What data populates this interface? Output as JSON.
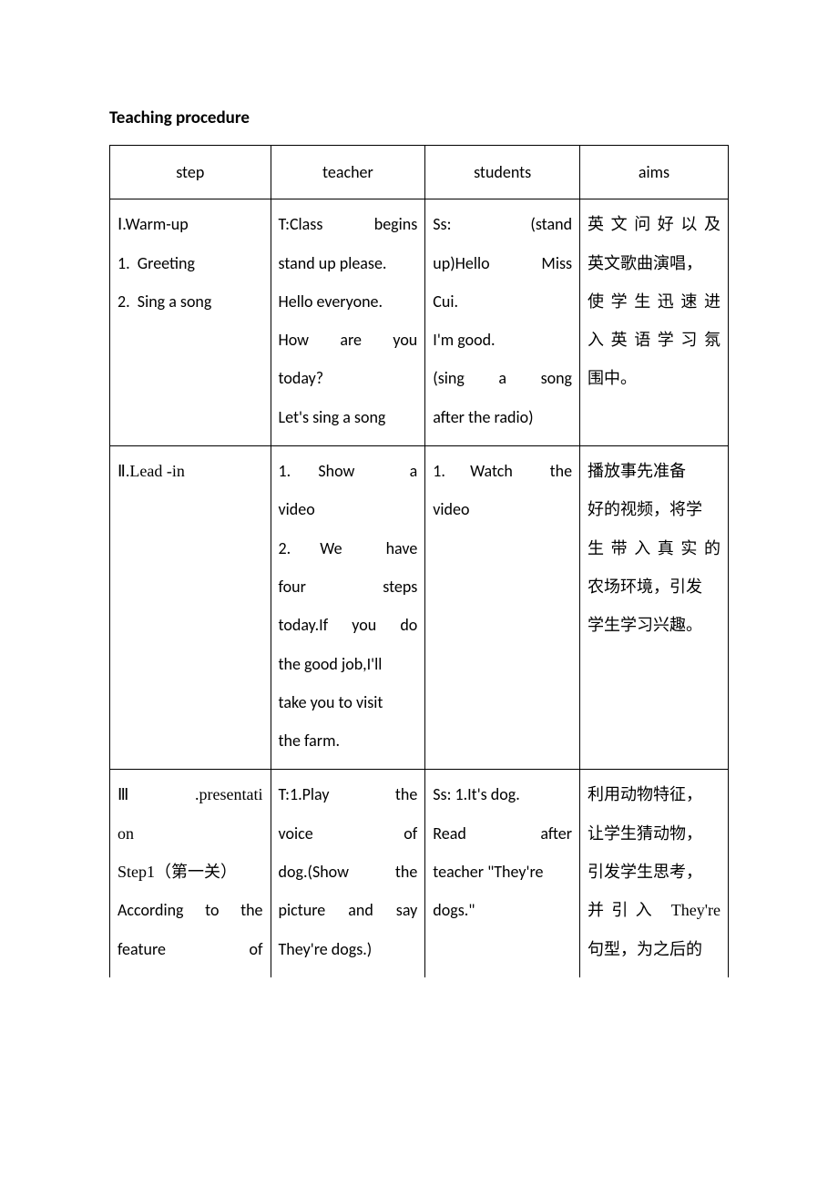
{
  "heading": "Teaching procedure",
  "headers": {
    "step": "step",
    "teacher": "teacher",
    "students": "students",
    "aims": "aims"
  },
  "rows": [
    {
      "step_html": "Ⅰ.Warm-up<br>1.&nbsp;&nbsp;Greeting<br>2.&nbsp;&nbsp;Sing a song",
      "teacher_html": "<span class='justify' style='display:block'>T:Class &nbsp;&nbsp;begins</span>stand up please.<br>Hello everyone.<br><span class='justify' style='display:block'>How&nbsp;&nbsp;are&nbsp;&nbsp;you</span>today?<br>Let's sing a song",
      "students_html": "<span class='justify' style='display:block'>Ss: &nbsp;&nbsp;&nbsp;&nbsp;(stand</span><span class='justify' style='display:block'>up)Hello&nbsp;&nbsp;&nbsp;Miss</span>Cui.<br>I'm good.<br><span class='justify' style='display:block'>(sing&nbsp;&nbsp;a&nbsp;&nbsp;song</span>after the radio)",
      "aims_html": "<span class='cn' style='display:block;text-align:justify;text-align-last:justify'>英文问好以及</span><span class='cn'>英文歌曲演唱，</span><br><span class='cn' style='display:block;text-align:justify;text-align-last:justify'>使学生迅速进</span><span class='cn' style='display:block;text-align:justify;text-align-last:justify'>入英语学习氛</span><span class='cn'>围中。</span>"
    },
    {
      "step_html": "<span class='songti'>Ⅱ.Lead -in</span>",
      "teacher_html": "<span class='justify' style='display:block'>1.&nbsp;&nbsp;Show&nbsp;&nbsp;&nbsp;&nbsp;a</span>video<br><span class='justify' style='display:block'>2.&nbsp;&nbsp;We&nbsp;&nbsp;&nbsp;have</span><span class='justify' style='display:block'>four&nbsp;&nbsp;&nbsp;&nbsp;&nbsp;steps</span><span class='justify' style='display:block'>today.If&nbsp;&nbsp;you&nbsp;&nbsp;do</span>the good job,I'll<br>take you to visit<br>the farm.",
      "students_html": "<span class='justify' style='display:block'>1.&nbsp;&nbsp;Watch&nbsp;&nbsp;&nbsp;the</span>video",
      "aims_html": "<span class='cn'>播放事先准备</span><br><span class='cn'>好的视频，将学</span><br><span class='cn' style='display:block;text-align:justify;text-align-last:justify'>生带入真实的</span><span class='cn'>农场环境，引发</span><br><span class='cn'>学生学习兴趣。</span>"
    },
    {
      "step_html": "<span class='songti' style='display:block;text-align:justify;text-align-last:justify'>Ⅲ.presentati</span><span class='songti'>on</span><br><span class='songti'>Step1（第一关）</span><br><span style='display:block;text-align:justify;text-align-last:justify'>According to the</span><span style='display:block;text-align:justify;text-align-last:justify'>feature&nbsp;&nbsp;&nbsp;&nbsp;&nbsp;&nbsp;of</span>",
      "teacher_html": "<span class='justify' style='display:block'>T:1.Play&nbsp;&nbsp;&nbsp;&nbsp;&nbsp;the</span><span class='justify' style='display:block'>voice&nbsp;&nbsp;&nbsp;&nbsp;&nbsp;&nbsp;&nbsp;of</span><span class='justify' style='display:block'>dog.(Show&nbsp;&nbsp;the</span><span class='justify' style='display:block'>picture&nbsp;&nbsp;and&nbsp;&nbsp;say</span>They're dogs.)",
      "students_html": "Ss: 1.It's dog.<br><span class='justify' style='display:block'>Read&nbsp;&nbsp;&nbsp;&nbsp;&nbsp;after</span>teacher \"They're<br>dogs.\"",
      "aims_html": "<span class='cn'>利用动物特征，</span><br><span class='cn'>让学生猜动物，</span><br><span class='cn'>引发学生思考，</span><br><span class='cn' style='display:block;text-align:justify;text-align-last:justify'>并引入 They're</span><span class='cn'>句型，为之后的</span>"
    }
  ]
}
